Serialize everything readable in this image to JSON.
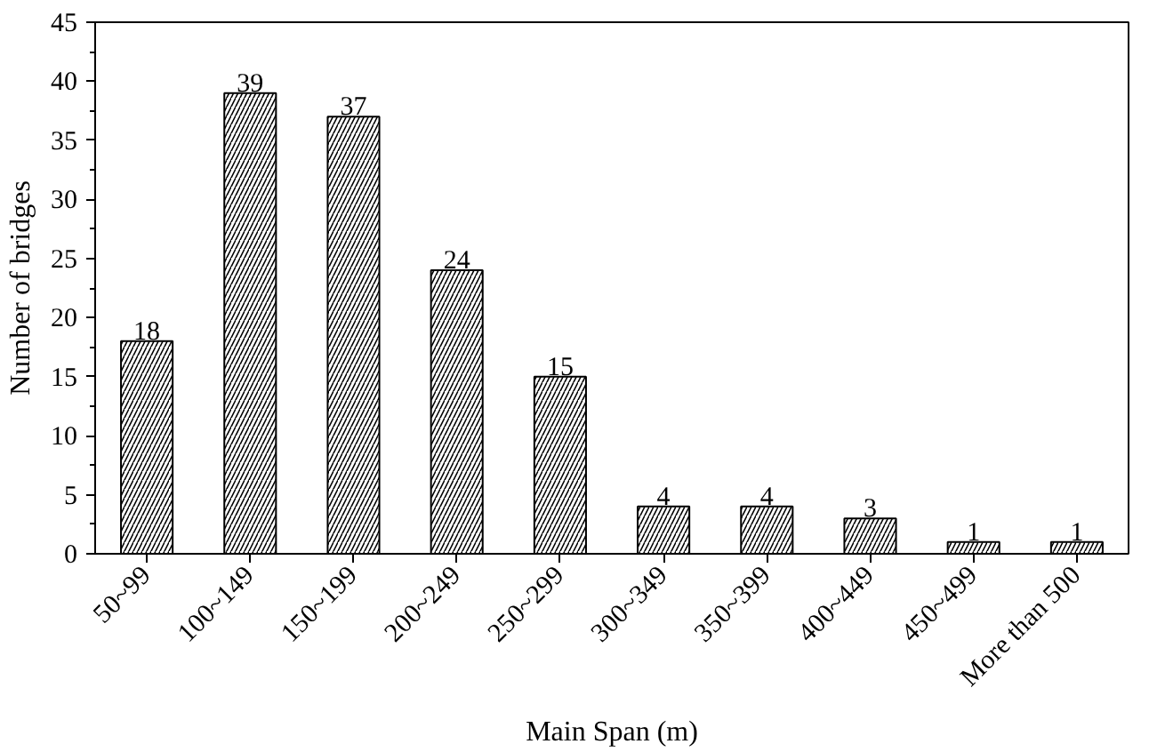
{
  "chart_data": {
    "type": "bar",
    "xlabel": "Main Span (m)",
    "ylabel": "Number of bridges",
    "categories": [
      "50~99",
      "100~149",
      "150~199",
      "200~249",
      "250~299",
      "300~349",
      "350~399",
      "400~449",
      "450~499",
      "More than 500"
    ],
    "values": [
      18,
      39,
      37,
      24,
      15,
      4,
      4,
      3,
      1,
      1
    ],
    "color": "#000000",
    "ylim": [
      0,
      45
    ],
    "yticks": [
      0,
      5,
      10,
      15,
      20,
      25,
      30,
      35,
      40,
      45
    ],
    "data_labels": true,
    "grid": false
  }
}
